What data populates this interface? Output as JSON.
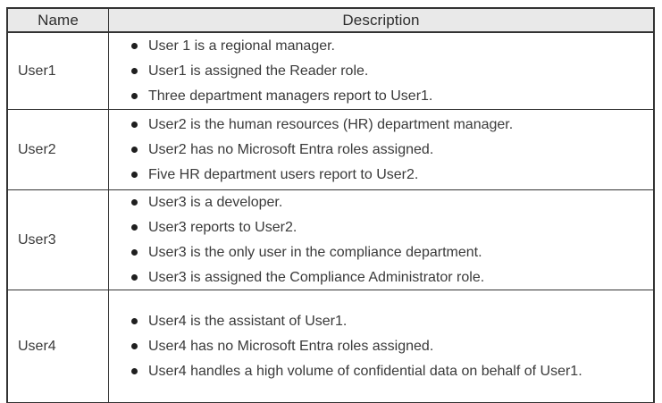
{
  "table": {
    "columns": [
      "Name",
      "Description"
    ],
    "rows": [
      {
        "name": "User1",
        "bullets": [
          "User 1 is a regional manager.",
          "User1 is assigned the Reader role.",
          "Three department managers report to User1."
        ]
      },
      {
        "name": "User2",
        "bullets": [
          "User2 is the human resources (HR) department manager.",
          "User2 has no Microsoft Entra roles assigned.",
          "Five HR department users report to User2."
        ]
      },
      {
        "name": "User3",
        "bullets": [
          "User3 is a developer.",
          "User3 reports to User2.",
          "User3 is the only user in the compliance department.",
          "User3 is assigned the Compliance Administrator role."
        ]
      },
      {
        "name": "User4",
        "bullets": [
          "User4 is the assistant of User1.",
          "User4 has no Microsoft Entra roles assigned.",
          "User4 handles a high volume of confidential data on behalf of User1."
        ]
      }
    ],
    "colors": {
      "header_bg": "#e9e9e9",
      "border": "#333333",
      "text": "#3a3a3a"
    }
  }
}
